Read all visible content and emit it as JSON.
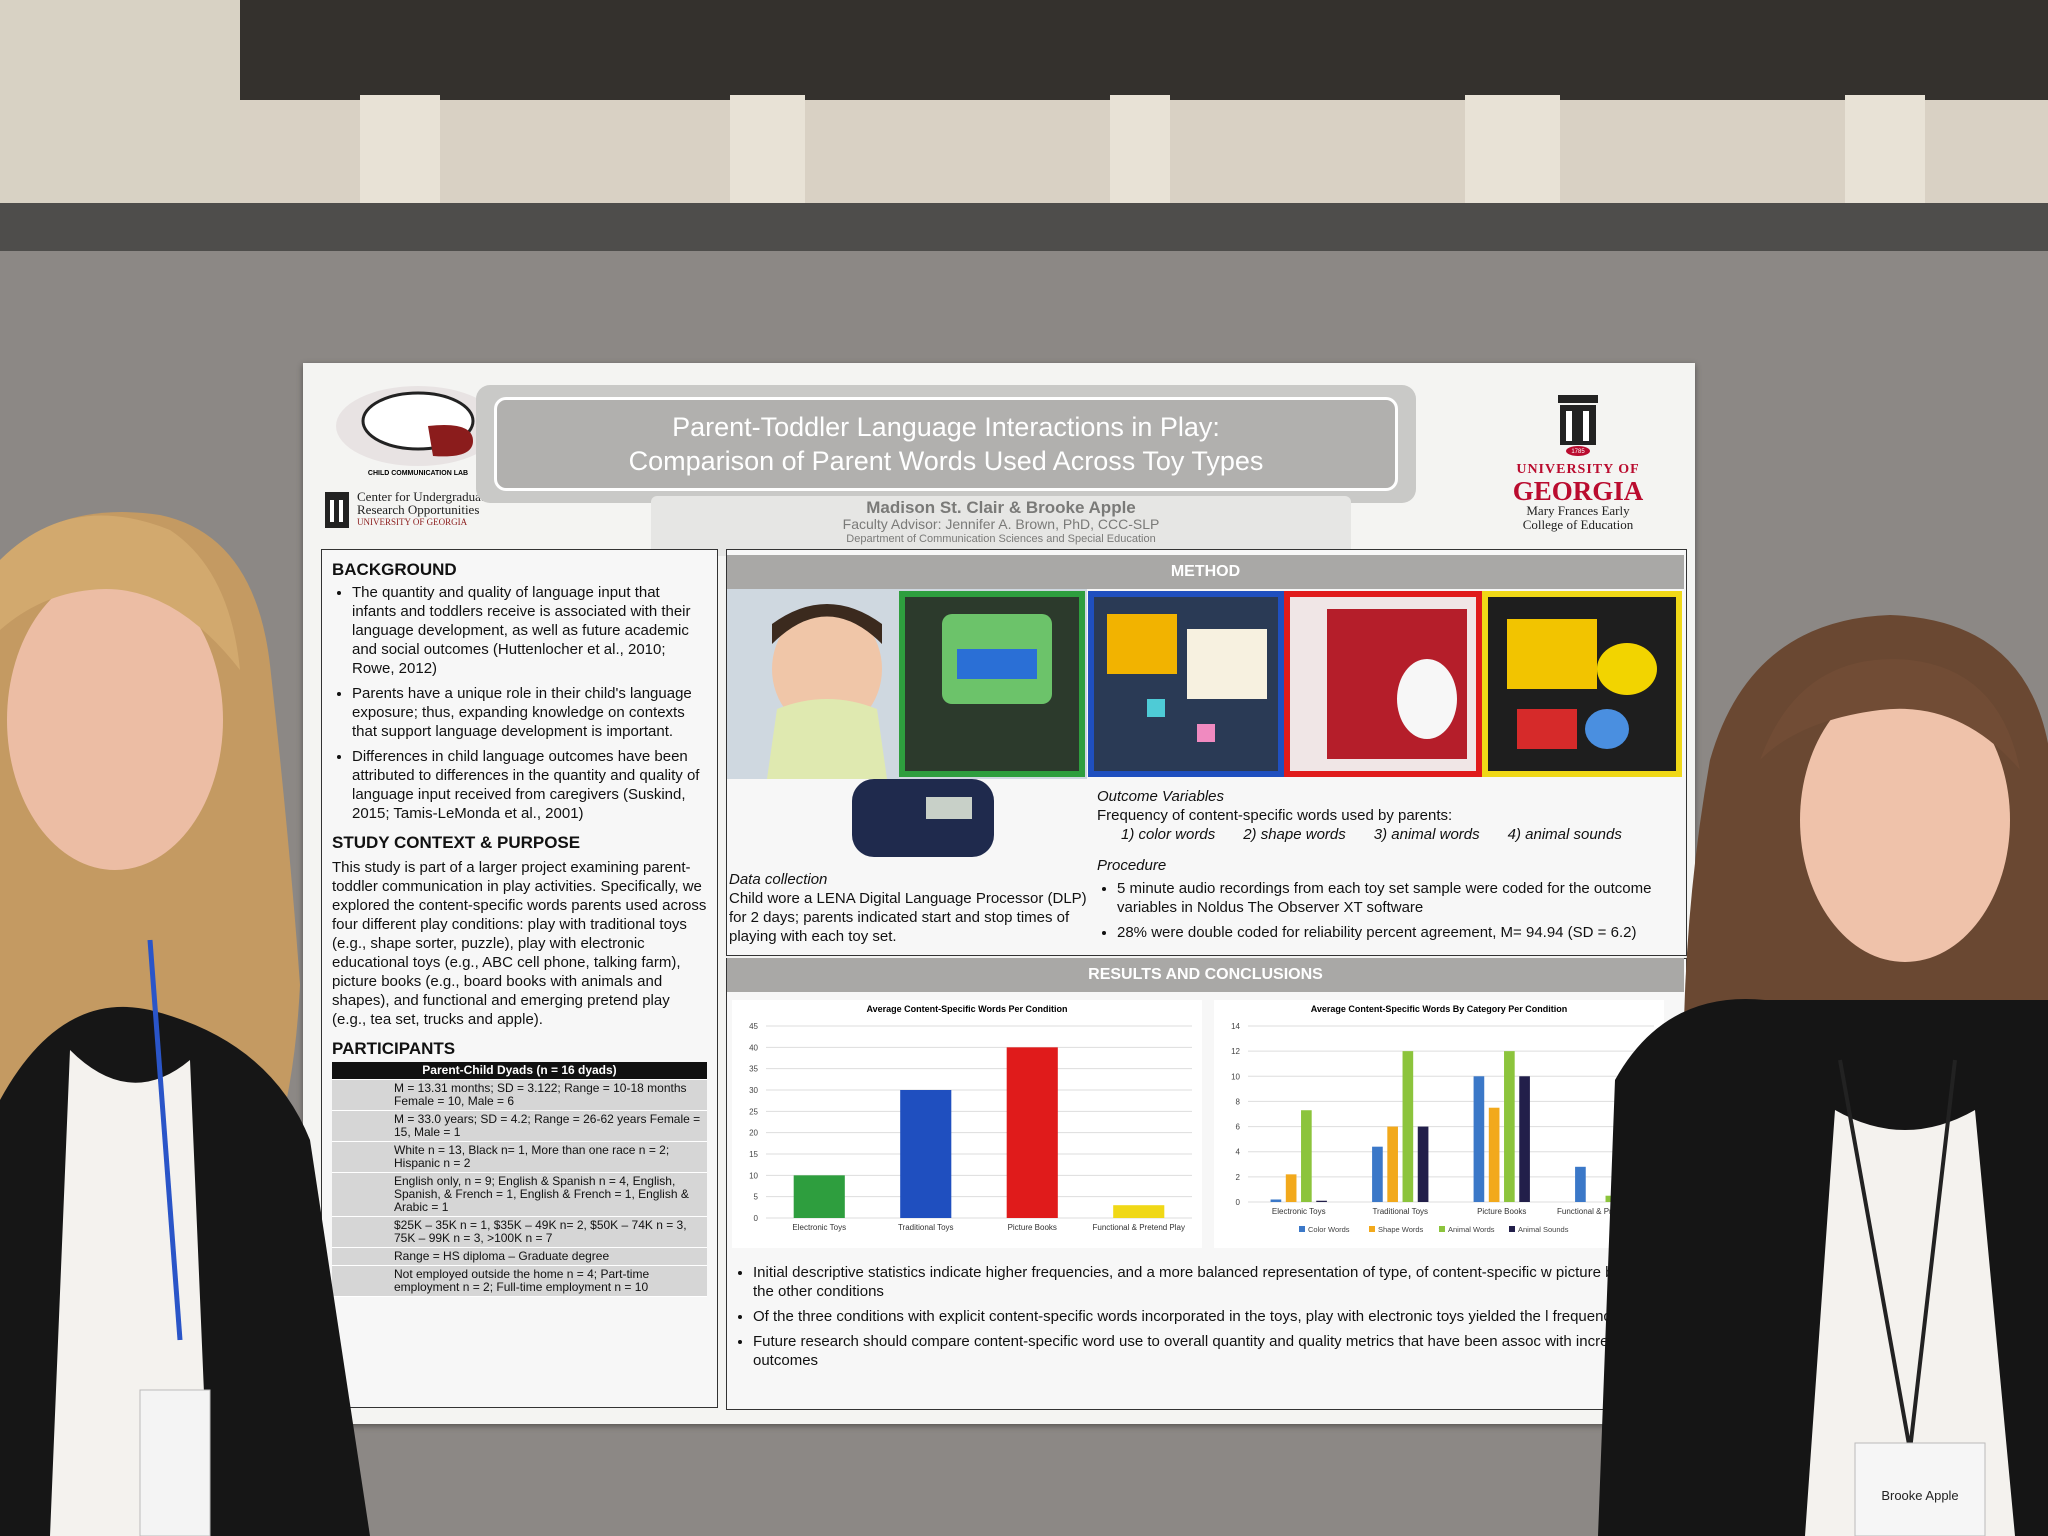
{
  "header": {
    "lab": "CHILD COMMUNICATION LAB",
    "curo": [
      "Center for Undergraduate",
      "Research Opportunities",
      "UNIVERSITY OF GEORGIA"
    ],
    "title": [
      "Parent-Toddler Language Interactions in Play:",
      "Comparison of Parent Words Used Across Toy Types"
    ],
    "authors": "Madison St. Clair & Brooke Apple",
    "advisor": "Faculty Advisor: Jennifer A. Brown, PhD, CCC-SLP",
    "department": "Department of Communication Sciences and Special Education",
    "uga": {
      "year": "1785",
      "line1": "UNIVERSITY OF",
      "line2": "GEORGIA",
      "college": [
        "Mary Frances Early",
        "College of Education"
      ]
    }
  },
  "background": {
    "heading": "BACKGROUND",
    "bullets": [
      "The quantity and quality of language input that infants and toddlers receive is associated with their language development, as well as future academic and social outcomes (Huttenlocher et al., 2010; Rowe, 2012)",
      "Parents have a unique role in their child's language exposure; thus, expanding knowledge on contexts that support language development is important.",
      "Differences in child language outcomes have been attributed to differences in the quantity and quality of language input received from caregivers (Suskind, 2015; Tamis-LeMonda et al., 2001)"
    ]
  },
  "study_context": {
    "heading": "STUDY CONTEXT & PURPOSE",
    "text": "This study is part of a larger project examining parent-toddler communication in play activities. Specifically, we explored the content-specific words parents used across four different play conditions: play with traditional toys (e.g., shape sorter, puzzle), play with electronic educational toys (e.g., ABC cell phone, talking farm), picture books (e.g., board books with animals and shapes), and functional and emerging pretend play (e.g., tea set, trucks and apple)."
  },
  "participants": {
    "heading": "PARTICIPANTS",
    "table_header": "Parent-Child Dyads (n = 16 dyads)",
    "rows": [
      "M = 13.31 months; SD = 3.122; Range = 10-18 months Female = 10, Male = 6",
      "M = 33.0 years; SD = 4.2; Range = 26-62 years Female = 15, Male = 1",
      "White n = 13, Black n= 1, More than one race n = 2; Hispanic n = 2",
      "English only, n = 9; English & Spanish n = 4, English, Spanish, & French = 1, English & French = 1, English & Arabic = 1",
      "$25K – 35K n = 1, $35K – 49K n= 2, $50K – 74K n = 3, 75K – 99K n = 3, >100K n = 7",
      "Range = HS diploma – Graduate degree",
      "Not employed outside the home n = 4; Part-time employment n = 2; Full-time employment n = 10"
    ]
  },
  "method": {
    "heading": "METHOD",
    "data_collection_label": "Data collection",
    "data_collection": "Child wore a LENA Digital Language Processor (DLP) for 2 days; parents indicated start and stop times of playing with each toy set.",
    "outcome_label": "Outcome Variables",
    "outcome_text": "Frequency of content-specific words used by parents:",
    "outcomes": [
      "1) color words",
      "2) shape words",
      "3) animal words",
      "4) animal sounds"
    ],
    "procedure_label": "Procedure",
    "procedure": [
      "5 minute audio recordings from each toy set sample were coded for the outcome variables in Noldus The Observer XT software",
      "28% were double coded for reliability percent agreement, M= 94.94 (SD = 6.2)"
    ]
  },
  "results": {
    "heading": "RESULTS AND CONCLUSIONS",
    "bullets": [
      "Initial descriptive statistics indicate higher frequencies, and a more balanced representation of type, of content-specific w picture books than the other conditions",
      "Of the three conditions with explicit content-specific words incorporated in the toys, play with electronic toys yielded the l frequency",
      "Future research should compare content-specific word use to overall quantity and quality metrics that have been assoc with increased child outcomes"
    ]
  },
  "badge": "Brooke Apple",
  "chart_data": [
    {
      "type": "bar",
      "title": "Average Content-Specific Words Per Condition",
      "categories": [
        "Electronic Toys",
        "Traditional Toys",
        "Picture Books",
        "Functional & Pretend Play"
      ],
      "values": [
        10,
        30,
        40,
        3
      ],
      "colors": [
        "#2e9e3e",
        "#1f4fbf",
        "#e01b1b",
        "#f0d817"
      ],
      "ylim": [
        0,
        45
      ],
      "yticks": [
        0,
        5,
        10,
        15,
        20,
        25,
        30,
        35,
        40,
        45
      ],
      "grid": true
    },
    {
      "type": "bar",
      "title": "Average Content-Specific Words By Category Per Condition",
      "categories": [
        "Electronic Toys",
        "Traditional Toys",
        "Picture Books",
        "Functional & Pretend Play"
      ],
      "series": [
        {
          "name": "Color Words",
          "color": "#3b78c8",
          "values": [
            0.2,
            4.4,
            10,
            2.8
          ]
        },
        {
          "name": "Shape Words",
          "color": "#f2a91c",
          "values": [
            2.2,
            6,
            7.5,
            0
          ]
        },
        {
          "name": "Animal Words",
          "color": "#8cc43c",
          "values": [
            7.3,
            12,
            12,
            0.5
          ]
        },
        {
          "name": "Animal Sounds",
          "color": "#221f4a",
          "values": [
            0.1,
            6,
            10,
            0
          ]
        }
      ],
      "ylim": [
        0,
        14
      ],
      "yticks": [
        0,
        2,
        4,
        6,
        8,
        10,
        12,
        14
      ],
      "grid": true,
      "legend": "bottom"
    }
  ]
}
